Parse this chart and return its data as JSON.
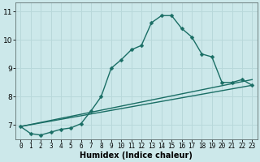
{
  "xlabel": "Humidex (Indice chaleur)",
  "ylabel": "",
  "xlim": [
    -0.5,
    23.5
  ],
  "ylim": [
    6.5,
    11.3
  ],
  "xticks": [
    0,
    1,
    2,
    3,
    4,
    5,
    6,
    7,
    8,
    9,
    10,
    11,
    12,
    13,
    14,
    15,
    16,
    17,
    18,
    19,
    20,
    21,
    22,
    23
  ],
  "yticks": [
    7,
    8,
    9,
    10,
    11
  ],
  "ytick_labels": [
    "7",
    "8",
    "9",
    "10",
    "11"
  ],
  "bg_color": "#cce8ea",
  "grid_color": "#b8d8da",
  "line_color": "#1a6e65",
  "line1_x": [
    0,
    1,
    2,
    3,
    4,
    5,
    6,
    7,
    8,
    9,
    10,
    11,
    12,
    13,
    14,
    15,
    16,
    17,
    18,
    19,
    20,
    21,
    22,
    23
  ],
  "line1_y": [
    6.95,
    6.7,
    6.65,
    6.75,
    6.85,
    6.9,
    7.05,
    7.5,
    8.0,
    9.0,
    9.3,
    9.65,
    9.8,
    10.6,
    10.85,
    10.85,
    10.4,
    10.1,
    9.5,
    9.4,
    8.5,
    8.5,
    8.6,
    8.4
  ],
  "line2_x": [
    0,
    23
  ],
  "line2_y": [
    6.95,
    8.6
  ],
  "line3_x": [
    0,
    23
  ],
  "line3_y": [
    6.95,
    8.4
  ],
  "marker_size": 2.5,
  "linewidth": 1.0,
  "xlabel_fontsize": 7,
  "tick_fontsize": 5.5,
  "ytick_fontsize": 6.5
}
